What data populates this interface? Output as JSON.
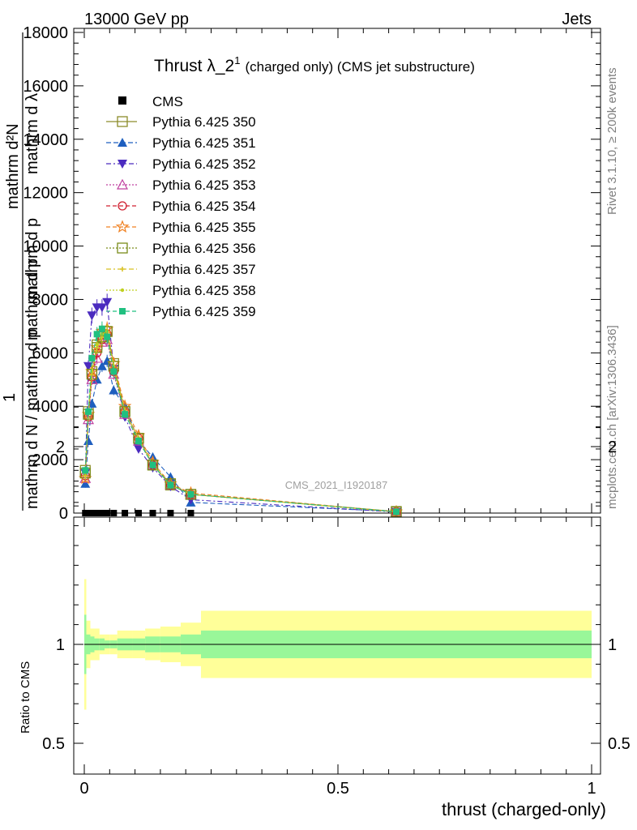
{
  "header": {
    "left": "13000 GeV pp",
    "right": "Jets"
  },
  "side_labels": {
    "rivet": "Rivet 3.1.10, ≥ 200k events",
    "mcplots": "mcplots.cern.ch [arXiv:1306.3436]"
  },
  "watermark": "CMS_2021_I1920187",
  "chart_data": [
    {
      "type": "line",
      "title_main": "Thrust λ_2",
      "title_sup": "1",
      "title_rest": "(charged only) (CMS jet substructure)",
      "ylabel_lines": [
        "mathrm d²N",
        "mathrm d p",
        "mathrm d λ",
        "1",
        "mathrm d N / mathrm d p",
        "mathrm d p"
      ],
      "ylim": [
        0,
        18000
      ],
      "yticks": [
        0,
        2000,
        4000,
        6000,
        8000,
        10000,
        12000,
        14000,
        16000,
        18000
      ],
      "ytick_labels": [
        "0",
        "2000",
        "4000",
        "6000",
        "8000",
        "10000",
        "12000",
        "14000",
        "16000",
        "18000"
      ],
      "xlim": [
        -0.02,
        1.0
      ],
      "cms_x": [
        0.002,
        0.008,
        0.015,
        0.025,
        0.035,
        0.045,
        0.058,
        0.08,
        0.107,
        0.135,
        0.17,
        0.21
      ],
      "cms_y": [
        0,
        0,
        0,
        0,
        0,
        0,
        0,
        0,
        0,
        0,
        0,
        0
      ],
      "x": [
        0.002,
        0.008,
        0.015,
        0.025,
        0.035,
        0.045,
        0.058,
        0.08,
        0.107,
        0.135,
        0.17,
        0.21,
        0.615
      ],
      "series": [
        {
          "name": "Pythia 6.425 350",
          "color": "#8c8c2a",
          "marker": "square-open",
          "dash": "",
          "values": [
            1600,
            3800,
            5300,
            6300,
            6700,
            6800,
            5600,
            3800,
            2800,
            1800,
            1050,
            700,
            60
          ]
        },
        {
          "name": "Pythia 6.425 351",
          "color": "#1f5fbf",
          "marker": "triangle-up",
          "dash": "6,3",
          "values": [
            1100,
            2700,
            4100,
            5000,
            5500,
            5700,
            4600,
            4000,
            2700,
            2100,
            1350,
            400,
            60
          ]
        },
        {
          "name": "Pythia 6.425 352",
          "color": "#4b2bbf",
          "marker": "triangle-down",
          "dash": "6,3,2,3",
          "values": [
            1500,
            5500,
            7400,
            7700,
            7700,
            7900,
            5400,
            3600,
            2400,
            1700,
            1000,
            500,
            40
          ]
        },
        {
          "name": "Pythia 6.425 353",
          "color": "#c040a0",
          "marker": "triangle-open",
          "dash": "2,2",
          "values": [
            1300,
            3500,
            5000,
            5800,
            6400,
            6500,
            5200,
            3700,
            2700,
            1800,
            1050,
            700,
            50
          ]
        },
        {
          "name": "Pythia 6.425 354",
          "color": "#d02030",
          "marker": "circle-open",
          "dash": "5,3",
          "values": [
            1400,
            3600,
            5100,
            6000,
            6500,
            6700,
            5300,
            3800,
            2800,
            1800,
            1050,
            700,
            50
          ]
        },
        {
          "name": "Pythia 6.425 355",
          "color": "#f08020",
          "marker": "star-open",
          "dash": "5,3",
          "values": [
            1300,
            3700,
            5300,
            6200,
            6800,
            6900,
            5600,
            4000,
            2900,
            1900,
            1100,
            750,
            50
          ]
        },
        {
          "name": "Pythia 6.425 356",
          "color": "#7a8c1a",
          "marker": "square-open",
          "dash": "2,2",
          "values": [
            1500,
            3700,
            5200,
            6200,
            6600,
            6800,
            5500,
            3800,
            2800,
            1800,
            1100,
            700,
            50
          ]
        },
        {
          "name": "Pythia 6.425 357",
          "color": "#d8c020",
          "marker": "small-cross",
          "dash": "6,3,2,3",
          "values": [
            1400,
            3700,
            5200,
            6200,
            6600,
            6700,
            5400,
            3800,
            2800,
            1800,
            1050,
            700,
            50
          ]
        },
        {
          "name": "Pythia 6.425 358",
          "color": "#c0d020",
          "marker": "dot",
          "dash": "2,2",
          "values": [
            1500,
            3800,
            5300,
            6300,
            6700,
            6800,
            5500,
            3800,
            2800,
            1800,
            1050,
            700,
            50
          ]
        },
        {
          "name": "Pythia 6.425 359",
          "color": "#20c080",
          "marker": "square-filled",
          "dash": "5,3",
          "values": [
            1600,
            3800,
            5800,
            6700,
            6900,
            6600,
            5300,
            3700,
            2700,
            1800,
            1050,
            700,
            50
          ]
        }
      ],
      "legend_data_label": "CMS"
    },
    {
      "type": "area",
      "ylabel": "Ratio to CMS",
      "ylim": [
        0.35,
        2.35
      ],
      "yticks": [
        0.5,
        1,
        2
      ],
      "ytick_labels": [
        "0.5",
        "1",
        "2"
      ],
      "xlim": [
        -0.02,
        1.0
      ],
      "xticks": [
        0,
        0.5,
        1
      ],
      "xtick_labels": [
        "0",
        "0.5",
        "1"
      ],
      "xlabel": "thrust (charged-only)",
      "bin_edges": [
        0,
        0.004,
        0.012,
        0.02,
        0.03,
        0.04,
        0.05,
        0.065,
        0.095,
        0.12,
        0.15,
        0.19,
        0.23,
        1.0
      ],
      "inner_band": [
        0.15,
        0.05,
        0.04,
        0.03,
        0.03,
        0.02,
        0.02,
        0.03,
        0.03,
        0.04,
        0.04,
        0.05,
        0.07
      ],
      "outer_band": [
        0.33,
        0.12,
        0.08,
        0.08,
        0.05,
        0.05,
        0.05,
        0.07,
        0.07,
        0.08,
        0.09,
        0.11,
        0.17
      ],
      "inner_color": "#99f799",
      "outer_color": "#ffff99"
    }
  ]
}
